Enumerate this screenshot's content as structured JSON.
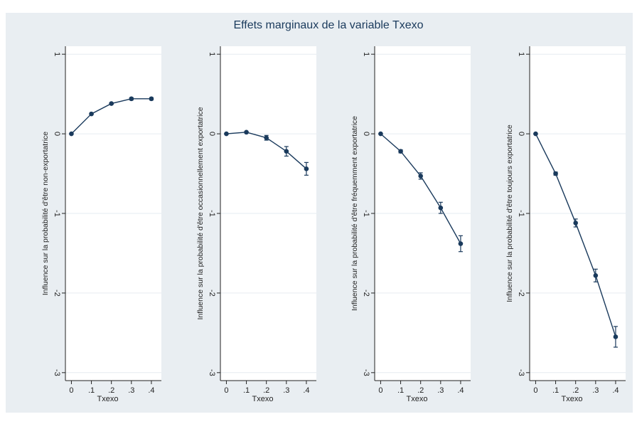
{
  "title": "Effets marginaux de la variable Txexo",
  "chart_data": [
    {
      "type": "line",
      "ylabel": "Influence sur la probabilité d'être non-exportatrice",
      "xlabel": "Txexo",
      "x": [
        0,
        0.1,
        0.2,
        0.3,
        0.4
      ],
      "values": [
        0,
        0.25,
        0.38,
        0.44,
        0.44
      ],
      "errors": [
        0,
        0.01,
        0.01,
        0.015,
        0.015
      ],
      "color": "#1a3a5c",
      "xlim": [
        -0.03,
        0.45
      ],
      "ylim": [
        -3.1,
        1.1
      ],
      "xticks": [
        0,
        {
          "value": 0.1,
          "label": ".1"
        },
        {
          "value": 0.2,
          "label": ".2"
        },
        {
          "value": 0.3,
          "label": ".3"
        },
        {
          "value": 0.4,
          "label": ".4"
        }
      ],
      "yticks": [
        1,
        0,
        -1,
        -2,
        -3
      ],
      "grid": true
    },
    {
      "type": "line",
      "ylabel": "Influence sur la probabilité d'être occasionnellement exportatrice",
      "xlabel": "Txexo",
      "x": [
        0,
        0.1,
        0.2,
        0.3,
        0.4
      ],
      "values": [
        0,
        0.02,
        -0.05,
        -0.22,
        -0.44
      ],
      "errors": [
        0,
        0.01,
        0.03,
        0.06,
        0.08
      ],
      "color": "#1a3a5c",
      "xlim": [
        -0.03,
        0.45
      ],
      "ylim": [
        -3.1,
        1.1
      ],
      "xticks": [
        0,
        {
          "value": 0.1,
          "label": ".1"
        },
        {
          "value": 0.2,
          "label": ".2"
        },
        {
          "value": 0.3,
          "label": ".3"
        },
        {
          "value": 0.4,
          "label": ".4"
        }
      ],
      "yticks": [
        1,
        0,
        -1,
        -2,
        -3
      ],
      "grid": true
    },
    {
      "type": "line",
      "ylabel": "Influence sur la probabilité d'être fréquemment exportatrice",
      "xlabel": "Txexo",
      "x": [
        0,
        0.1,
        0.2,
        0.3,
        0.4
      ],
      "values": [
        0,
        -0.22,
        -0.53,
        -0.93,
        -1.38
      ],
      "errors": [
        0,
        0.02,
        0.04,
        0.07,
        0.1
      ],
      "color": "#1a3a5c",
      "xlim": [
        -0.03,
        0.45
      ],
      "ylim": [
        -3.1,
        1.1
      ],
      "xticks": [
        0,
        {
          "value": 0.1,
          "label": ".1"
        },
        {
          "value": 0.2,
          "label": ".2"
        },
        {
          "value": 0.3,
          "label": ".3"
        },
        {
          "value": 0.4,
          "label": ".4"
        }
      ],
      "yticks": [
        1,
        0,
        -1,
        -2,
        -3
      ],
      "grid": true
    },
    {
      "type": "line",
      "ylabel": "Influence sur la probabilité d'être toujours exportatrice",
      "xlabel": "Txexo",
      "x": [
        0,
        0.1,
        0.2,
        0.3,
        0.4
      ],
      "values": [
        0,
        -0.5,
        -1.12,
        -1.78,
        -2.55
      ],
      "errors": [
        0,
        0.02,
        0.05,
        0.08,
        0.13
      ],
      "color": "#1a3a5c",
      "xlim": [
        -0.03,
        0.45
      ],
      "ylim": [
        -3.1,
        1.1
      ],
      "xticks": [
        0,
        {
          "value": 0.1,
          "label": ".1"
        },
        {
          "value": 0.2,
          "label": ".2"
        },
        {
          "value": 0.3,
          "label": ".3"
        },
        {
          "value": 0.4,
          "label": ".4"
        }
      ],
      "yticks": [
        1,
        0,
        -1,
        -2,
        -3
      ],
      "grid": true
    }
  ]
}
